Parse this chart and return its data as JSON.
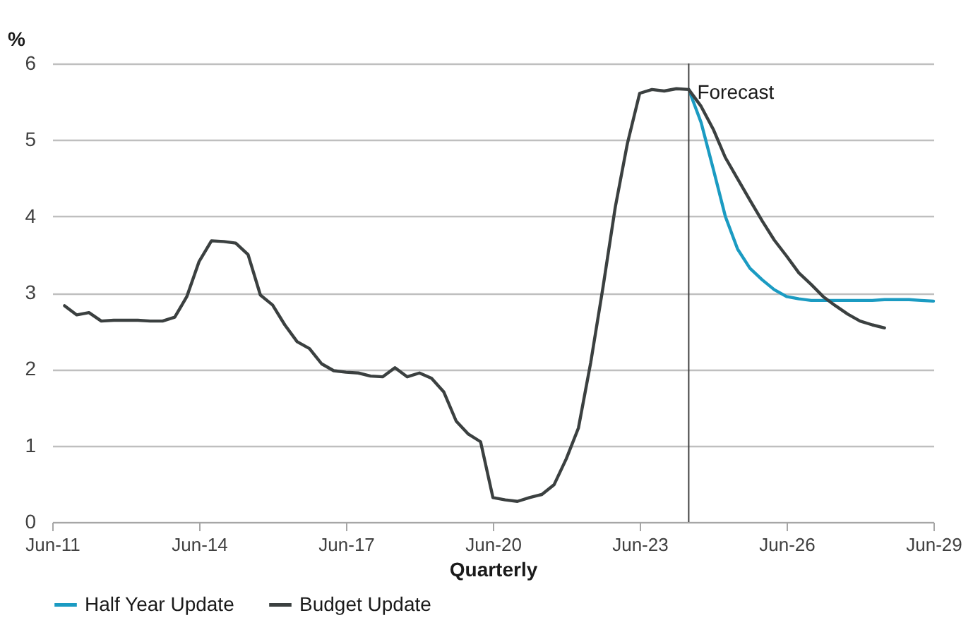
{
  "chart_data": {
    "type": "line",
    "xlabel": "Quarterly",
    "ylabel": "%",
    "xlim": [
      "2011-06",
      "2029-06"
    ],
    "xticks": [
      {
        "value": "2011-06",
        "label": "Jun-11"
      },
      {
        "value": "2014-06",
        "label": "Jun-14"
      },
      {
        "value": "2017-06",
        "label": "Jun-17"
      },
      {
        "value": "2020-06",
        "label": "Jun-20"
      },
      {
        "value": "2023-06",
        "label": "Jun-23"
      },
      {
        "value": "2026-06",
        "label": "Jun-26"
      },
      {
        "value": "2029-06",
        "label": "Jun-29"
      }
    ],
    "ylim": [
      0,
      6
    ],
    "yticks": [
      0,
      1,
      2,
      3,
      4,
      5,
      6
    ],
    "grid": "y",
    "legend": "bottom",
    "line_style": "solid",
    "ref_lines": [
      {
        "axis": "x",
        "value": "2024-06",
        "label": "Forecast",
        "color": "#404040"
      }
    ],
    "series": [
      {
        "name": "Half Year Update",
        "color": "#1b9bc2",
        "x": [
          "2024-06",
          "2024-09",
          "2024-12",
          "2025-03",
          "2025-06",
          "2025-09",
          "2025-12",
          "2026-03",
          "2026-06",
          "2026-09",
          "2026-12",
          "2027-03",
          "2027-06",
          "2027-09",
          "2027-12",
          "2028-03",
          "2028-06",
          "2028-09",
          "2028-12",
          "2029-03",
          "2029-06"
        ],
        "values": [
          5.66,
          5.23,
          4.62,
          4.0,
          3.57,
          3.32,
          3.17,
          3.04,
          2.95,
          2.92,
          2.9,
          2.9,
          2.9,
          2.9,
          2.9,
          2.9,
          2.91,
          2.91,
          2.91,
          2.9,
          2.89
        ]
      },
      {
        "name": "Budget Update",
        "color": "#3b4040",
        "x": [
          "2011-09",
          "2011-12",
          "2012-03",
          "2012-06",
          "2012-09",
          "2012-12",
          "2013-03",
          "2013-06",
          "2013-09",
          "2013-12",
          "2014-03",
          "2014-06",
          "2014-09",
          "2014-12",
          "2015-03",
          "2015-06",
          "2015-09",
          "2015-12",
          "2016-03",
          "2016-06",
          "2016-09",
          "2016-12",
          "2017-03",
          "2017-06",
          "2017-09",
          "2017-12",
          "2018-03",
          "2018-06",
          "2018-09",
          "2018-12",
          "2019-03",
          "2019-06",
          "2019-09",
          "2019-12",
          "2020-03",
          "2020-06",
          "2020-09",
          "2020-12",
          "2021-03",
          "2021-06",
          "2021-09",
          "2021-12",
          "2022-03",
          "2022-06",
          "2022-09",
          "2022-12",
          "2023-03",
          "2023-06",
          "2023-09",
          "2023-12",
          "2024-03",
          "2024-06",
          "2024-09",
          "2024-12",
          "2025-03",
          "2025-06",
          "2025-09",
          "2025-12",
          "2026-03",
          "2026-06",
          "2026-09",
          "2026-12",
          "2027-03",
          "2027-06",
          "2027-09",
          "2027-12",
          "2028-03",
          "2028-06"
        ],
        "values": [
          2.83,
          2.71,
          2.74,
          2.63,
          2.64,
          2.64,
          2.64,
          2.63,
          2.63,
          2.68,
          2.95,
          3.41,
          3.68,
          3.67,
          3.65,
          3.5,
          2.97,
          2.84,
          2.58,
          2.36,
          2.27,
          2.07,
          1.98,
          1.96,
          1.95,
          1.91,
          1.9,
          2.02,
          1.9,
          1.95,
          1.88,
          1.7,
          1.32,
          1.15,
          1.05,
          0.32,
          0.29,
          0.27,
          0.32,
          0.36,
          0.49,
          0.83,
          1.23,
          2.09,
          3.08,
          4.12,
          4.95,
          5.61,
          5.66,
          5.64,
          5.67,
          5.66,
          5.44,
          5.14,
          4.77,
          4.49,
          4.21,
          3.94,
          3.69,
          3.48,
          3.26,
          3.11,
          2.95,
          2.83,
          2.72,
          2.63,
          2.58,
          2.54
        ]
      }
    ]
  }
}
